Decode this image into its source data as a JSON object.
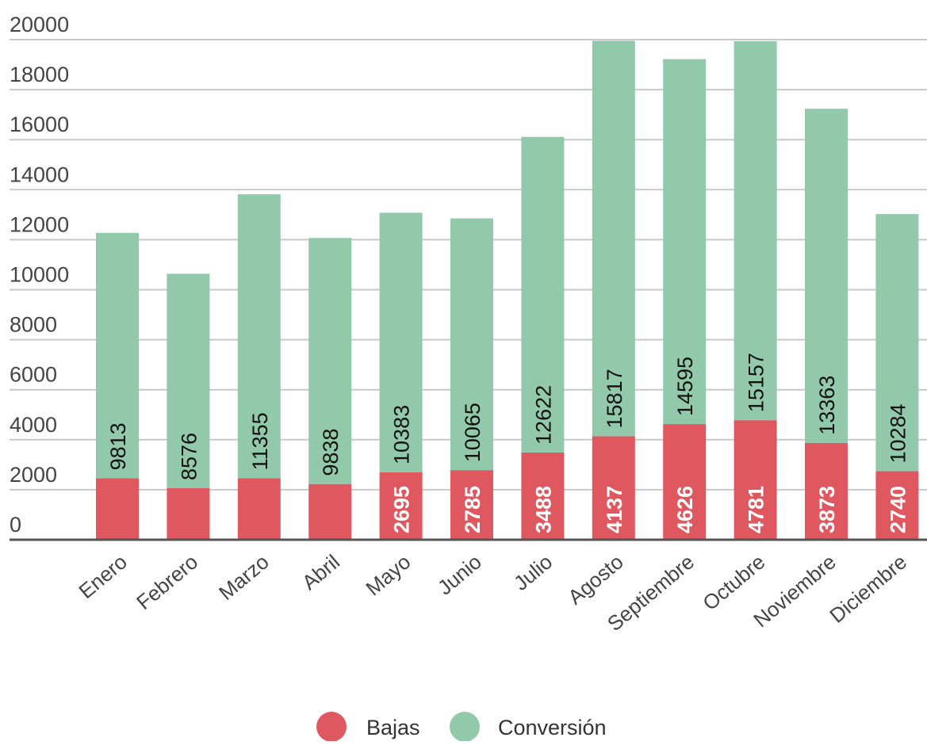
{
  "chart_data": {
    "type": "bar",
    "stacked": true,
    "title": "",
    "xlabel": "",
    "ylabel": "",
    "ylim": [
      0,
      20000
    ],
    "yticks": [
      0,
      2000,
      4000,
      6000,
      8000,
      10000,
      12000,
      14000,
      16000,
      18000,
      20000
    ],
    "grid": true,
    "legend_position": "bottom",
    "categories": [
      "Enero",
      "Febrero",
      "Marzo",
      "Abril",
      "Mayo",
      "Junio",
      "Julio",
      "Agosto",
      "Septiembre",
      "Octubre",
      "Noviembre",
      "Diciembre"
    ],
    "series": [
      {
        "name": "Bajas",
        "color": "#e0585f",
        "values": [
          2460,
          2060,
          2460,
          2230,
          2695,
          2785,
          3488,
          4137,
          4626,
          4781,
          3873,
          2740
        ],
        "labels": [
          "",
          "",
          "",
          "",
          "2695",
          "2785",
          "3488",
          "4137",
          "4626",
          "4781",
          "3873",
          "2740"
        ]
      },
      {
        "name": "Conversión",
        "color": "#93c9ab",
        "values": [
          9813,
          8576,
          11355,
          9838,
          10383,
          10065,
          12622,
          15817,
          14595,
          15157,
          13363,
          10284
        ],
        "labels": [
          "9813",
          "8576",
          "11355",
          "9838",
          "10383",
          "10065",
          "12622",
          "15817",
          "14595",
          "15157",
          "13363",
          "10284"
        ]
      }
    ]
  }
}
